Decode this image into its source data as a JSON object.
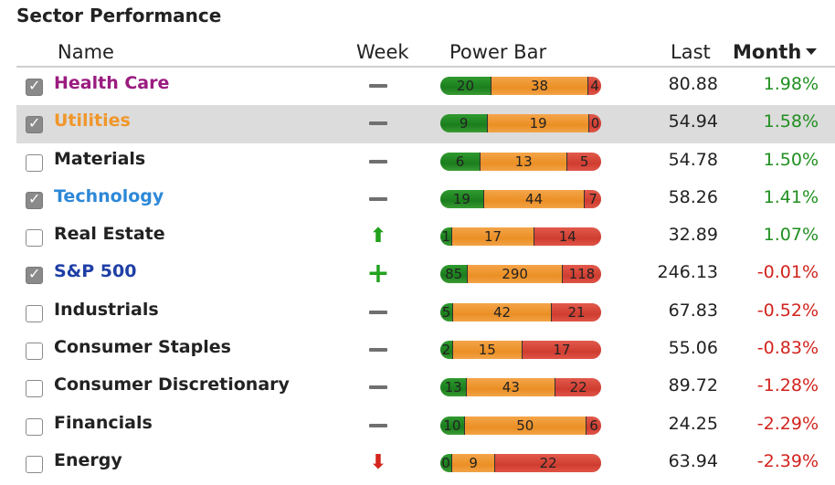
{
  "title": "Sector Performance",
  "columns": {
    "name": "Name",
    "week": "Week",
    "power_bar": "Power Bar",
    "last": "Last",
    "month": "Month"
  },
  "colors": {
    "positive": "#1f8f1f",
    "negative": "#d2231d",
    "bar_green": "#1b7d1d",
    "bar_orange": "#eb8f24",
    "bar_red": "#cf3d30"
  },
  "rows": [
    {
      "name": "Health Care",
      "name_color": "#9b1b7f",
      "checked": true,
      "highlighted": false,
      "week_icon": "dash-icon",
      "power": [
        20,
        38,
        4
      ],
      "last": "80.88",
      "month": "1.98%",
      "month_sign": "pos"
    },
    {
      "name": "Utilities",
      "name_color": "#f0962a",
      "checked": true,
      "highlighted": true,
      "week_icon": "dash-icon",
      "power": [
        9,
        19,
        0
      ],
      "last": "54.94",
      "month": "1.58%",
      "month_sign": "pos"
    },
    {
      "name": "Materials",
      "name_color": "#222222",
      "checked": false,
      "highlighted": false,
      "week_icon": "dash-icon",
      "power": [
        6,
        13,
        5
      ],
      "last": "54.78",
      "month": "1.50%",
      "month_sign": "pos"
    },
    {
      "name": "Technology",
      "name_color": "#2d88d8",
      "checked": true,
      "highlighted": false,
      "week_icon": "dash-icon",
      "power": [
        19,
        44,
        7
      ],
      "last": "58.26",
      "month": "1.41%",
      "month_sign": "pos"
    },
    {
      "name": "Real Estate",
      "name_color": "#222222",
      "checked": false,
      "highlighted": false,
      "week_icon": "arrow-up-icon",
      "power": [
        1,
        17,
        14
      ],
      "last": "32.89",
      "month": "1.07%",
      "month_sign": "pos"
    },
    {
      "name": "S&P 500",
      "name_color": "#1f3fa6",
      "checked": true,
      "highlighted": false,
      "week_icon": "plus-icon",
      "power": [
        85,
        290,
        118
      ],
      "last": "246.13",
      "month": "-0.01%",
      "month_sign": "neg"
    },
    {
      "name": "Industrials",
      "name_color": "#222222",
      "checked": false,
      "highlighted": false,
      "week_icon": "dash-icon",
      "power": [
        5,
        42,
        21
      ],
      "last": "67.83",
      "month": "-0.52%",
      "month_sign": "neg"
    },
    {
      "name": "Consumer Staples",
      "name_color": "#222222",
      "checked": false,
      "highlighted": false,
      "week_icon": "dash-icon",
      "power": [
        2,
        15,
        17
      ],
      "last": "55.06",
      "month": "-0.83%",
      "month_sign": "neg"
    },
    {
      "name": "Consumer Discretionary",
      "name_color": "#222222",
      "checked": false,
      "highlighted": false,
      "week_icon": "dash-icon",
      "power": [
        13,
        43,
        22
      ],
      "last": "89.72",
      "month": "-1.28%",
      "month_sign": "neg"
    },
    {
      "name": "Financials",
      "name_color": "#222222",
      "checked": false,
      "highlighted": false,
      "week_icon": "dash-icon",
      "power": [
        10,
        50,
        6
      ],
      "last": "24.25",
      "month": "-2.29%",
      "month_sign": "neg"
    },
    {
      "name": "Energy",
      "name_color": "#222222",
      "checked": false,
      "highlighted": false,
      "week_icon": "arrow-down-icon",
      "power": [
        0,
        9,
        22
      ],
      "last": "63.94",
      "month": "-2.39%",
      "month_sign": "neg"
    }
  ]
}
